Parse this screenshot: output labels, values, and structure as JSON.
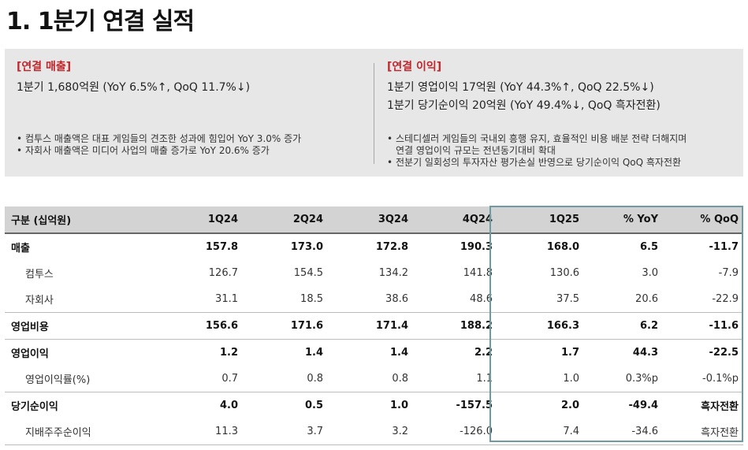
{
  "page_title": "1. 1분기 연결 실적",
  "summary": {
    "left": {
      "title": "[연결 매출]",
      "lines": [
        "1분기 1,680억원 (YoY 6.5%↑, QoQ 11.7%↓)"
      ],
      "bullets": [
        "컴투스 매출액은 대표 게임들의 견조한 성과에 힘입어 YoY 3.0% 증가",
        "자회사 매출액은 미디어 사업의 매출 증가로 YoY 20.6% 증가"
      ]
    },
    "right": {
      "title": "[연결 이익]",
      "lines": [
        "1분기 영업이익 17억원 (YoY 44.3%↑, QoQ 22.5%↓)",
        "1분기 당기순이익 20억원 (YoY 49.4%↓, QoQ 흑자전환)"
      ],
      "bullets": [
        "스테디셀러 게임들의 국내외 흥행 유지, 효율적인 비용 배분 전략 더해지며",
        "연결 영업이익 규모는 전년동기대비 확대",
        "전분기 일회성의 투자자산 평가손실 반영으로 당기순이익 QoQ 흑자전환"
      ]
    }
  },
  "table": {
    "headers": [
      "구분 (십억원)",
      "1Q24",
      "2Q24",
      "3Q24",
      "4Q24",
      "1Q25",
      "% YoY",
      "% QoQ"
    ],
    "rows": [
      {
        "label": "매출",
        "values": [
          "157.8",
          "173.0",
          "172.8",
          "190.3",
          "168.0",
          "6.5",
          "-11.7"
        ]
      },
      {
        "label": "컴투스",
        "values": [
          "126.7",
          "154.5",
          "134.2",
          "141.8",
          "130.6",
          "3.0",
          "-7.9"
        ]
      },
      {
        "label": "자회사",
        "values": [
          "31.1",
          "18.5",
          "38.6",
          "48.6",
          "37.5",
          "20.6",
          "-22.9"
        ]
      },
      {
        "label": "영업비용",
        "values": [
          "156.6",
          "171.6",
          "171.4",
          "188.2",
          "166.3",
          "6.2",
          "-11.6"
        ]
      },
      {
        "label": "영업이익",
        "values": [
          "1.2",
          "1.4",
          "1.4",
          "2.2",
          "1.7",
          "44.3",
          "-22.5"
        ]
      },
      {
        "label": "영업이익률(%)",
        "values": [
          "0.7",
          "0.8",
          "0.8",
          "1.1",
          "1.0",
          "0.3%p",
          "-0.1%p"
        ]
      },
      {
        "label": "당기순이익",
        "values": [
          "4.0",
          "0.5",
          "1.0",
          "-157.5",
          "2.0",
          "-49.4",
          "흑자전환"
        ]
      },
      {
        "label": "지배주주순이익",
        "values": [
          "11.3",
          "3.7",
          "3.2",
          "-126.0",
          "7.4",
          "-34.6",
          "흑자전환"
        ]
      }
    ]
  },
  "accent_color": "#c0272d",
  "highlight_color": "#6d9aa3"
}
